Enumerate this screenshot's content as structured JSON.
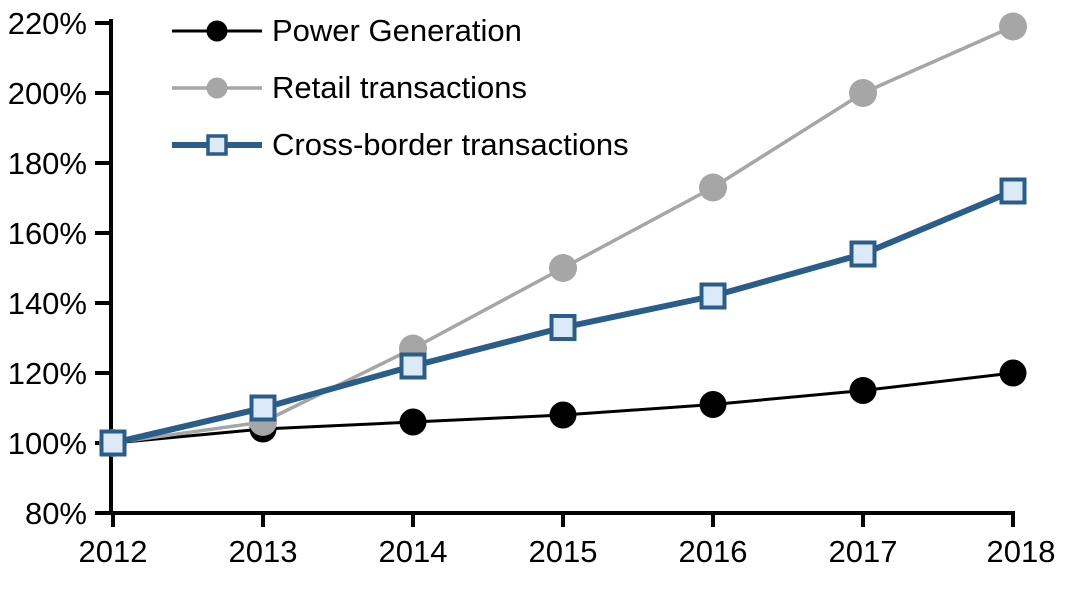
{
  "chart_data": {
    "type": "line",
    "title": "",
    "xlabel": "",
    "ylabel": "",
    "x": [
      "2012",
      "2013",
      "2014",
      "2015",
      "2016",
      "2017",
      "2018"
    ],
    "series": [
      {
        "id": "power-generation",
        "name": "Power Generation",
        "color": "#000000",
        "marker": "circle",
        "marker_fill": "#000000",
        "marker_radius": 13.5,
        "line_width": 3,
        "values": [
          100,
          104,
          106,
          108,
          111,
          115,
          120
        ]
      },
      {
        "id": "retail-transactions",
        "name": "Retail transactions",
        "color": "#A6A6A6",
        "marker": "circle",
        "marker_fill": "#A6A6A6",
        "marker_radius": 14,
        "line_width": 3.5,
        "values": [
          100,
          106,
          127,
          150,
          173,
          200,
          219
        ]
      },
      {
        "id": "cross-border-transactions",
        "name": "Cross-border transactions",
        "color": "#2B5D8B",
        "marker": "square",
        "marker_fill": "#DCE9F6",
        "marker_size": 23,
        "line_width": 6,
        "values": [
          100,
          110,
          122,
          133,
          142,
          154,
          172
        ]
      }
    ],
    "ylim": [
      80,
      220
    ],
    "ytick_step": 20,
    "ytick_suffix": "%",
    "ytick_labels": [
      "80%",
      "100%",
      "120%",
      "140%",
      "160%",
      "180%",
      "200%",
      "220%"
    ],
    "xtick_labels": [
      "2012",
      "2013",
      "2014",
      "2015",
      "2016",
      "2017",
      "2018"
    ],
    "grid": false,
    "legend_position": "top-left",
    "axis_color": "#000000",
    "background_color": "#FFFFFF"
  }
}
